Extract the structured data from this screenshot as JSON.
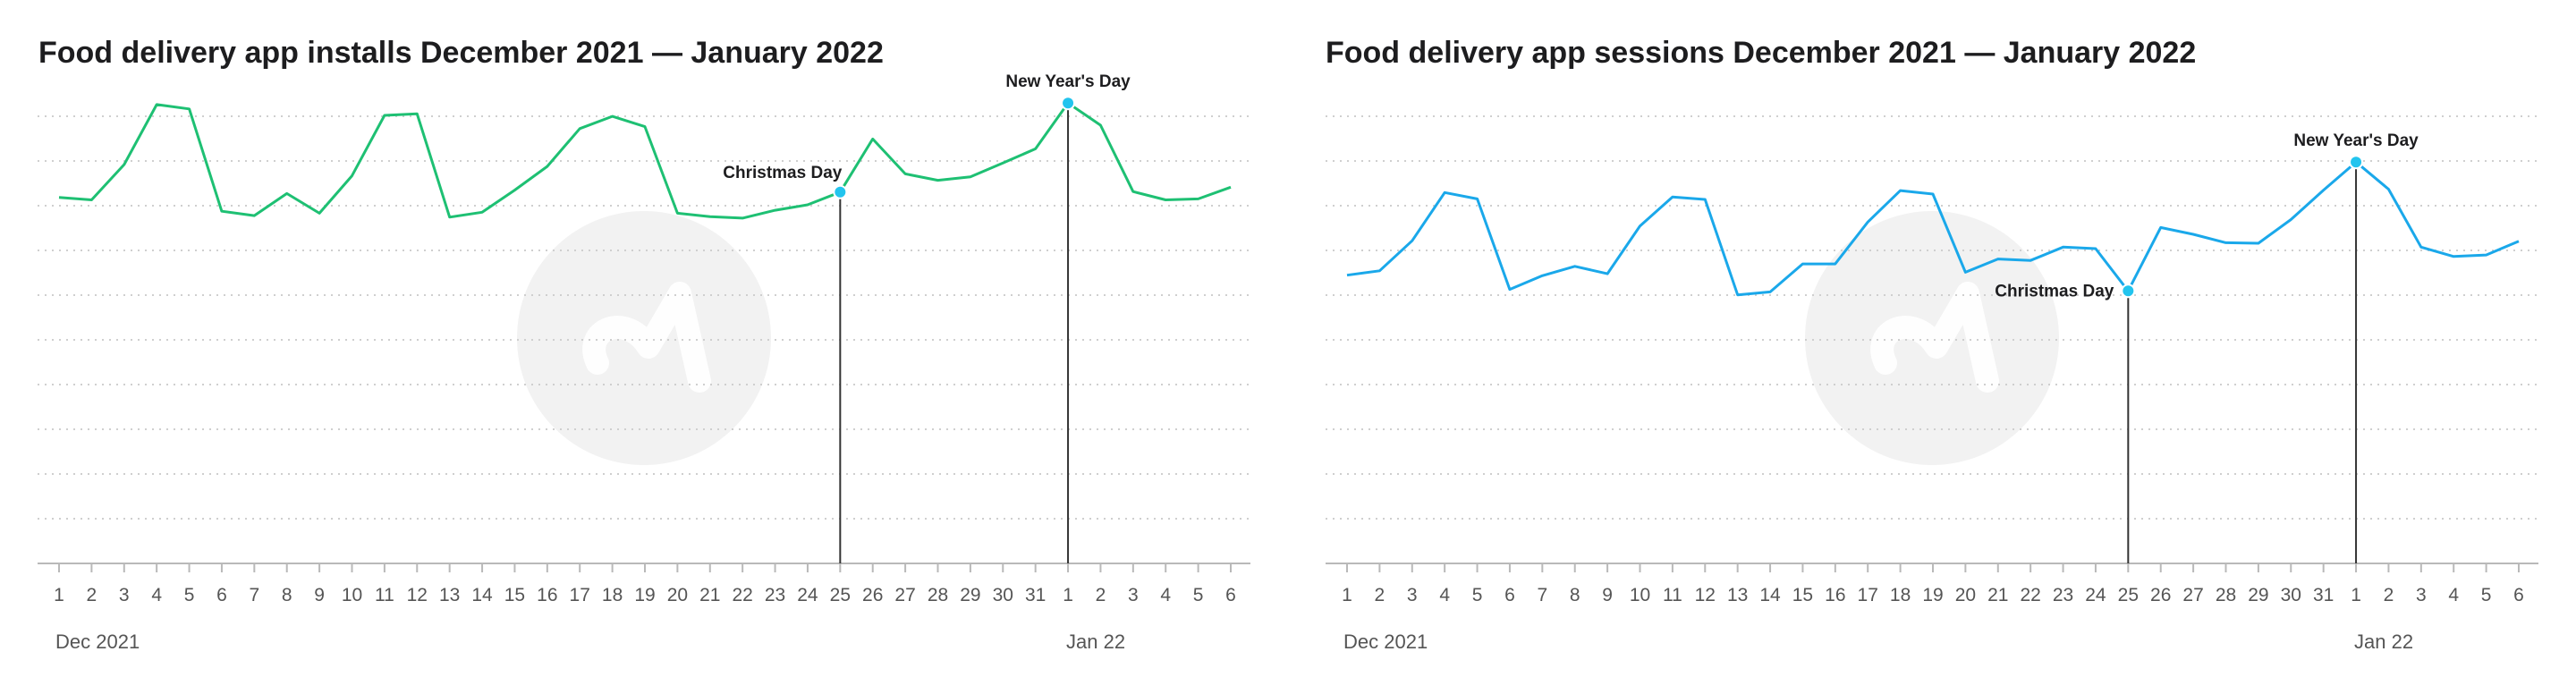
{
  "colors": {
    "installs_line": "#1ec073",
    "sessions_line": "#1aa8ea",
    "marker": "#22c4ee",
    "grid": "#cfcfcf",
    "axis": "#b9b9b9",
    "text": "#1d1d1f",
    "tick_text": "#555555",
    "watermark": "#f2f2f2"
  },
  "watermark_icon": "adjust-logo-icon",
  "chart_data": [
    {
      "type": "line",
      "title": "Food delivery app installs December 2021 — January 2022",
      "series_color_key": "installs_line",
      "grid": true,
      "ylim": [
        0,
        100
      ],
      "x_tick_labels": [
        "1",
        "2",
        "3",
        "4",
        "5",
        "6",
        "7",
        "8",
        "9",
        "10",
        "11",
        "12",
        "13",
        "14",
        "15",
        "16",
        "17",
        "18",
        "19",
        "20",
        "21",
        "22",
        "23",
        "24",
        "25",
        "26",
        "27",
        "28",
        "29",
        "30",
        "31",
        "1",
        "2",
        "3",
        "4",
        "5",
        "6"
      ],
      "period_labels": [
        {
          "text": "Dec 2021",
          "index": 0
        },
        {
          "text": "Jan 22",
          "index": 31
        }
      ],
      "values": [
        74.4,
        73.9,
        81.1,
        93.3,
        92.4,
        71.6,
        70.7,
        75.2,
        71.2,
        78.8,
        91.1,
        91.4,
        70.4,
        71.4,
        75.9,
        80.7,
        88.4,
        90.9,
        88.8,
        71.2,
        70.5,
        70.2,
        71.8,
        72.9,
        75.5,
        86.3,
        79.2,
        77.9,
        78.6,
        81.4,
        84.3,
        93.6,
        89.1,
        75.6,
        73.9,
        74.1,
        76.5
      ],
      "annotations": [
        {
          "label": "Christmas Day",
          "index": 24,
          "label_side": "top-left"
        },
        {
          "label": "New Year's Day",
          "index": 31,
          "label_side": "top"
        }
      ]
    },
    {
      "type": "line",
      "title": "Food delivery app sessions December 2021 — January 2022",
      "series_color_key": "sessions_line",
      "grid": true,
      "ylim": [
        0,
        100
      ],
      "x_tick_labels": [
        "1",
        "2",
        "3",
        "4",
        "5",
        "6",
        "7",
        "8",
        "9",
        "10",
        "11",
        "12",
        "13",
        "14",
        "15",
        "16",
        "17",
        "18",
        "19",
        "20",
        "21",
        "22",
        "23",
        "24",
        "25",
        "26",
        "27",
        "28",
        "29",
        "30",
        "31",
        "1",
        "2",
        "3",
        "4",
        "5",
        "6"
      ],
      "period_labels": [
        {
          "text": "Dec 2021",
          "index": 0
        },
        {
          "text": "Jan 22",
          "index": 31
        }
      ],
      "values": [
        58.6,
        59.5,
        65.6,
        75.4,
        74.1,
        55.7,
        58.5,
        60.4,
        58.9,
        68.6,
        74.5,
        74.0,
        54.6,
        55.2,
        60.9,
        60.9,
        69.4,
        75.8,
        75.1,
        59.2,
        61.9,
        61.6,
        64.3,
        64.0,
        55.4,
        68.3,
        66.9,
        65.2,
        65.1,
        69.9,
        75.9,
        81.6,
        76.1,
        64.3,
        62.4,
        62.7,
        65.5
      ],
      "annotations": [
        {
          "label": "Christmas Day",
          "index": 24,
          "label_side": "left"
        },
        {
          "label": "New Year's Day",
          "index": 31,
          "label_side": "top"
        }
      ]
    }
  ]
}
